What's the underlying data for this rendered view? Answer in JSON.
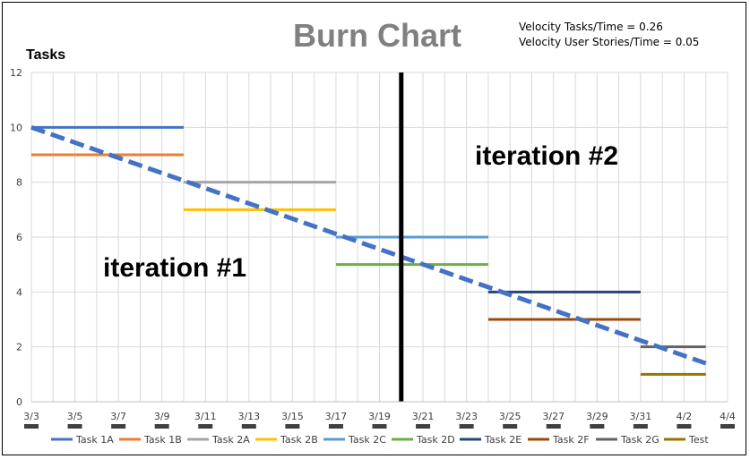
{
  "chart_data": {
    "type": "line",
    "title": "Burn Chart",
    "ylabel": "Tasks",
    "xlabel": "",
    "ylim": [
      0,
      12
    ],
    "yticks": [
      0,
      2,
      4,
      6,
      8,
      10,
      12
    ],
    "x_tick_labels": [
      "3/3",
      "3/5",
      "3/7",
      "3/9",
      "3/11",
      "3/13",
      "3/15",
      "3/17",
      "3/19",
      "3/21",
      "3/23",
      "3/25",
      "3/27",
      "3/29",
      "3/31",
      "4/2",
      "4/4"
    ],
    "x_start": "3/3",
    "x_end": "4/4",
    "grid": true,
    "legend_position": "bottom",
    "annotations": {
      "velocity_tasks": "Velocity Tasks/Time = 0.26",
      "velocity_stories": "Velocity User Stories/Time = 0.05",
      "iteration1": "iteration #1",
      "iteration2": "iteration #2"
    },
    "iteration_divider_x": "3/20",
    "series": [
      {
        "name": "Task 1A",
        "color": "#4472C4",
        "x": [
          "3/3",
          "3/10"
        ],
        "y": [
          10,
          10
        ]
      },
      {
        "name": "Task 1B",
        "color": "#ED7D31",
        "x": [
          "3/3",
          "3/10"
        ],
        "y": [
          9,
          9
        ]
      },
      {
        "name": "Task 2A",
        "color": "#A5A5A5",
        "x": [
          "3/10",
          "3/17"
        ],
        "y": [
          8,
          8
        ]
      },
      {
        "name": "Task 2B",
        "color": "#FFC000",
        "x": [
          "3/10",
          "3/17"
        ],
        "y": [
          7,
          7
        ]
      },
      {
        "name": "Task 2C",
        "color": "#5B9BD5",
        "x": [
          "3/17",
          "3/24"
        ],
        "y": [
          6,
          6
        ]
      },
      {
        "name": "Task 2D",
        "color": "#70AD47",
        "x": [
          "3/17",
          "3/24"
        ],
        "y": [
          5,
          5
        ]
      },
      {
        "name": "Task 2E",
        "color": "#264478",
        "x": [
          "3/24",
          "3/31"
        ],
        "y": [
          4,
          4
        ]
      },
      {
        "name": "Task 2F",
        "color": "#9E480E",
        "x": [
          "3/24",
          "3/31"
        ],
        "y": [
          3,
          3
        ]
      },
      {
        "name": "Task 2G",
        "color": "#636363",
        "x": [
          "3/31",
          "4/3"
        ],
        "y": [
          2,
          2
        ]
      },
      {
        "name": "Test",
        "color": "#997300",
        "x": [
          "3/31",
          "4/3"
        ],
        "y": [
          1,
          1
        ]
      }
    ],
    "trend_line": {
      "color": "#4472C4",
      "x": [
        "3/3",
        "4/3"
      ],
      "y": [
        10,
        1.4
      ]
    }
  }
}
